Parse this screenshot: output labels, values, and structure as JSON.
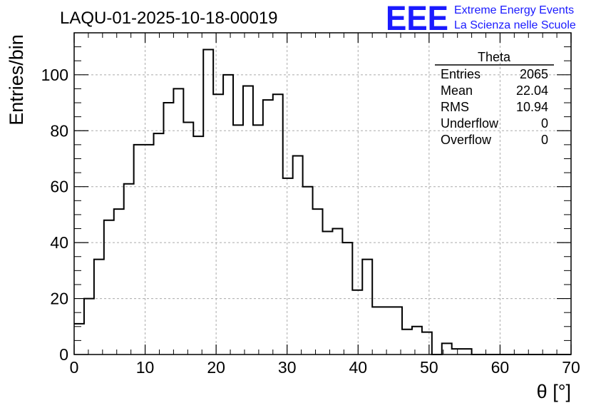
{
  "chart_data": {
    "type": "bar",
    "title": "LAQU-01-2025-10-18-00019",
    "xlabel": "θ [°]",
    "ylabel": "Entries/bin",
    "xlim": [
      0,
      70
    ],
    "ylim": [
      0,
      115
    ],
    "bin_width": 1.4,
    "grid": true,
    "x_ticks": [
      0,
      10,
      20,
      30,
      40,
      50,
      60,
      70
    ],
    "y_ticks": [
      0,
      20,
      40,
      60,
      80,
      100
    ],
    "values": [
      11,
      20,
      34,
      48,
      52,
      61,
      75,
      75,
      79,
      90,
      95,
      83,
      78,
      109,
      93,
      100,
      82,
      96,
      82,
      91,
      93,
      63,
      71,
      60,
      52,
      44,
      45,
      40,
      23,
      34,
      17,
      17,
      17,
      9,
      10,
      8,
      0,
      4,
      2,
      2,
      0,
      0,
      0,
      0,
      0,
      0,
      0,
      0,
      0,
      0
    ],
    "stats": {
      "name": "Theta",
      "rows": [
        {
          "label": "Entries",
          "value": "2065"
        },
        {
          "label": "Mean",
          "value": "22.04"
        },
        {
          "label": "RMS",
          "value": "10.94"
        },
        {
          "label": "Underflow",
          "value": "0"
        },
        {
          "label": "Overflow",
          "value": "0"
        }
      ]
    }
  },
  "logo": {
    "mark": "EEE",
    "line1": "Extreme Energy Events",
    "line2": "La Scienza nelle Scuole",
    "color": "#1a1aff"
  }
}
